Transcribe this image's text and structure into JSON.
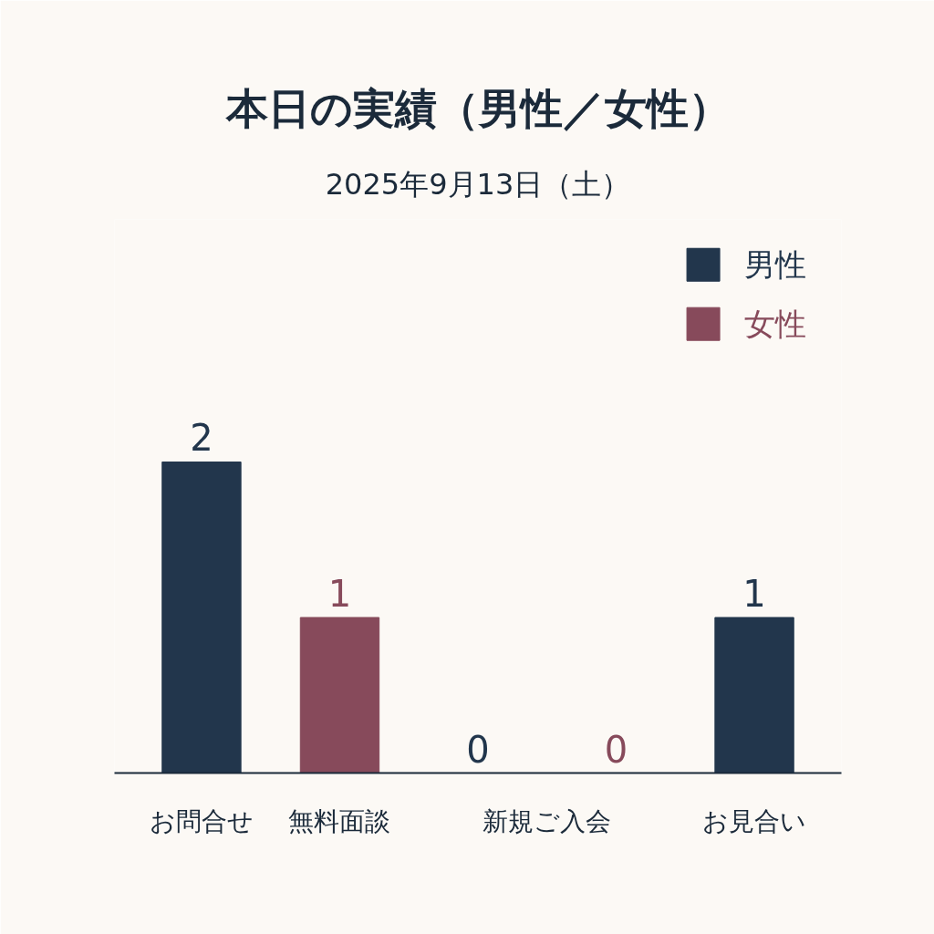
{
  "chart_data": {
    "type": "bar",
    "title": "本日の実績（男性／女性）",
    "subtitle": "2025年9月13日（土）",
    "categories": [
      "お問合せ",
      "無料面談",
      "新規ご入会",
      "お見合い"
    ],
    "series": [
      {
        "name": "男性",
        "color": "#22364c",
        "values": [
          2,
          null,
          0,
          1
        ]
      },
      {
        "name": "女性",
        "color": "#874a5b",
        "values": [
          null,
          1,
          0,
          null
        ]
      }
    ],
    "data_labels": true,
    "legend": "top right"
  }
}
